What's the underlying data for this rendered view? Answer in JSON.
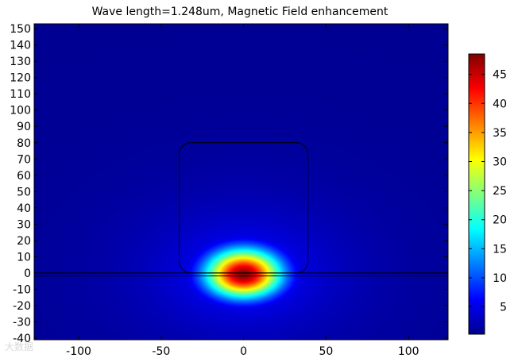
{
  "chart_data": {
    "type": "heatmap",
    "title": "Wave length=1.248um, Magnetic Field enhancement",
    "xlim": [
      -127,
      124
    ],
    "ylim": [
      -41,
      153
    ],
    "xticks": [
      -100,
      -50,
      0,
      50,
      100
    ],
    "yticks": [
      150,
      140,
      130,
      120,
      110,
      100,
      90,
      80,
      70,
      60,
      50,
      40,
      30,
      20,
      10,
      0,
      -10,
      -20,
      -30,
      -40
    ],
    "colorbar": {
      "range": [
        0.3,
        48.5
      ],
      "ticks": [
        45,
        40,
        35,
        30,
        25,
        20,
        15,
        10,
        5
      ],
      "colormap": [
        "#00008f",
        "#0000ff",
        "#00ffff",
        "#ffff00",
        "#ff0000",
        "#800000"
      ]
    },
    "field": {
      "peak_value": 48,
      "peak_x": 0,
      "peak_y": -1,
      "half_width_x": 21,
      "half_width_y": 6.5,
      "background_value": 0.5
    },
    "structure": {
      "block": {
        "x_range": [
          -39,
          39
        ],
        "y_range": [
          0,
          80
        ],
        "corner_radius": 7
      },
      "layer_lines_y": [
        0,
        -1.8
      ]
    },
    "colors": {
      "background": "#0000d0",
      "outline": "#000000"
    }
  },
  "watermark": "大数据"
}
